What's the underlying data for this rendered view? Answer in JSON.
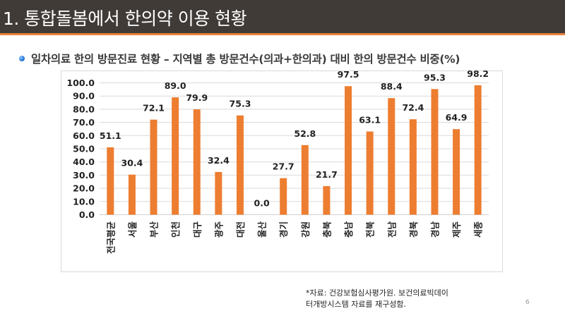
{
  "header": {
    "title": "1. 통합돌봄에서 한의약 이용 현황"
  },
  "subtitle": {
    "bullet_icon": "blue-sphere-bullet",
    "text": "일차의료 한의 방문진료 현황 – 지역별 총 방문건수(의과+한의과) 대비 한의 방문건수 비중(%)"
  },
  "chart_data": {
    "type": "bar",
    "title": "",
    "xlabel": "",
    "ylabel": "",
    "ylim": [
      0,
      100
    ],
    "y_ticks": [
      "0.0",
      "10.0",
      "20.0",
      "30.0",
      "40.0",
      "50.0",
      "60.0",
      "70.0",
      "80.0",
      "90.0",
      "100.0"
    ],
    "grid": true,
    "legend": "none",
    "bar_color": "#ed7d31",
    "categories": [
      "전국평균",
      "서울",
      "부산",
      "인천",
      "대구",
      "광주",
      "대전",
      "울산",
      "경기",
      "강원",
      "충북",
      "충남",
      "전북",
      "전남",
      "경북",
      "경남",
      "제주",
      "세종"
    ],
    "values": [
      51.1,
      30.4,
      72.1,
      89.0,
      79.9,
      32.4,
      75.3,
      0.0,
      27.7,
      52.8,
      21.7,
      97.5,
      63.1,
      88.4,
      72.4,
      95.3,
      64.9,
      98.2
    ],
    "data_labels": [
      "51.1",
      "30.4",
      "72.1",
      "89.0",
      "79.9",
      "32.4",
      "75.3",
      "0.0",
      "27.7",
      "52.8",
      "21.7",
      "97.5",
      "63.1",
      "88.4",
      "72.4",
      "95.3",
      "64.9",
      "98.2"
    ]
  },
  "footer": {
    "source_line1": "*자료: 건강보험심사평가원. 보건의료빅데이",
    "source_line2": "터개방시스템 자료를 재구성함.",
    "page_number": "6"
  }
}
